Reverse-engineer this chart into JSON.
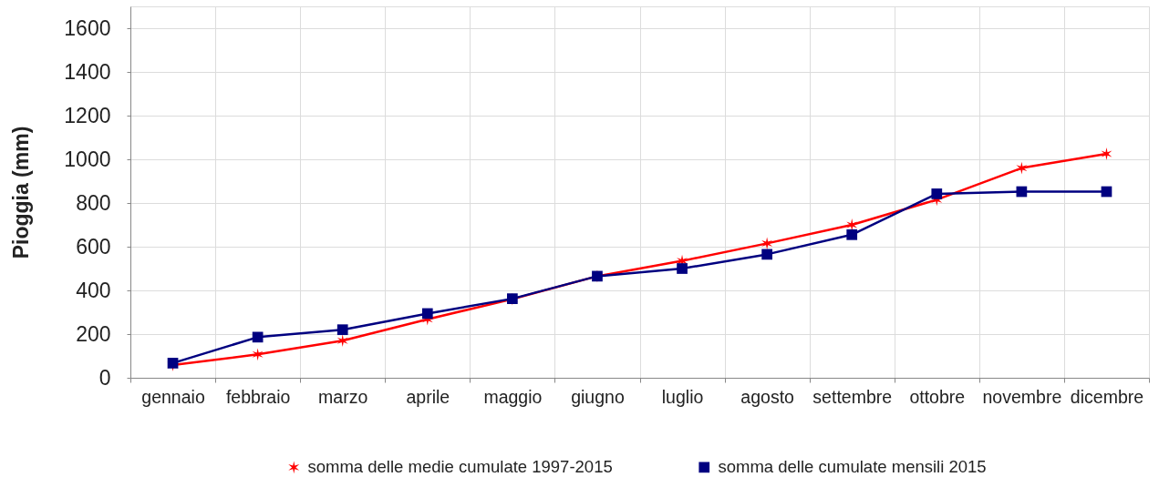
{
  "chart_data": {
    "type": "line",
    "ylabel": "Pioggia (mm)",
    "categories": [
      "gennaio",
      "febbraio",
      "marzo",
      "aprile",
      "maggio",
      "giugno",
      "luglio",
      "agosto",
      "settembre",
      "ottobre",
      "novembre",
      "dicembre"
    ],
    "ylim": [
      0,
      1700
    ],
    "yticks": [
      0,
      200,
      400,
      600,
      800,
      1000,
      1200,
      1400,
      1600
    ],
    "grid": true,
    "legend": "bottom",
    "line_style": "solid",
    "series": [
      {
        "name": "somma delle medie cumulate 1997-2015",
        "color": "#ff0000",
        "marker": "cross",
        "values": [
          58,
          107,
          170,
          268,
          360,
          465,
          535,
          615,
          700,
          815,
          960,
          1025
        ]
      },
      {
        "name": "somma delle cumulate mensili 2015",
        "color": "#000080",
        "marker": "square",
        "values": [
          67,
          186,
          220,
          294,
          362,
          465,
          500,
          565,
          655,
          842,
          852,
          852
        ]
      }
    ]
  }
}
